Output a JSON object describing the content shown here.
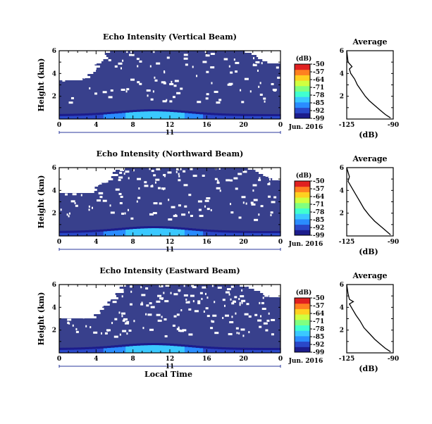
{
  "chart_data": [
    {
      "type": "heatmap",
      "title": "Echo Intensity (Vertical Beam)",
      "ylabel": "Height (km)",
      "ylim": [
        0,
        6
      ],
      "yticks": [
        "2",
        "4",
        "6"
      ],
      "xticks": [
        "0",
        "4",
        "8",
        "12",
        "16",
        "20",
        "0"
      ],
      "xlim": [
        0,
        24
      ],
      "day_label": "11",
      "date_label": "Jun. 2016",
      "colorbar": {
        "unit": "(dB)",
        "ticks": [
          "-50",
          "-57",
          "-64",
          "-71",
          "-78",
          "-85",
          "-92",
          "-99"
        ],
        "range": [
          -99,
          -50
        ]
      },
      "profile": {
        "title": "Average",
        "xlabel": "(dB)",
        "xticks": [
          "-125",
          "-90"
        ],
        "yticks": [
          "2",
          "4",
          "6"
        ],
        "xlim": [
          -125,
          -90
        ],
        "points": [
          [
            -92,
            0.1
          ],
          [
            -96,
            0.4
          ],
          [
            -100,
            0.8
          ],
          [
            -104,
            1.2
          ],
          [
            -108,
            1.6
          ],
          [
            -111,
            2.0
          ],
          [
            -114,
            2.5
          ],
          [
            -117,
            3.0
          ],
          [
            -119,
            3.5
          ],
          [
            -122,
            4.0
          ],
          [
            -123,
            4.4
          ],
          [
            -121,
            4.6
          ],
          [
            -124,
            5.0
          ],
          [
            -125,
            6.0
          ]
        ]
      }
    },
    {
      "type": "heatmap",
      "title": "Echo Intensity (Northward Beam)",
      "ylabel": "Height (km)",
      "ylim": [
        0,
        6
      ],
      "yticks": [
        "2",
        "4",
        "6"
      ],
      "xticks": [
        "0",
        "4",
        "8",
        "12",
        "16",
        "20",
        "0"
      ],
      "xlim": [
        0,
        24
      ],
      "day_label": "11",
      "date_label": "Jun. 2016",
      "colorbar": {
        "unit": "(dB)",
        "ticks": [
          "-50",
          "-57",
          "-64",
          "-71",
          "-78",
          "-85",
          "-92",
          "-99"
        ],
        "range": [
          -99,
          -50
        ]
      },
      "profile": {
        "title": "Average",
        "xlabel": "(dB)",
        "xticks": [
          "-125",
          "-90"
        ],
        "yticks": [
          "2",
          "4",
          "6"
        ],
        "xlim": [
          -125,
          -90
        ],
        "points": [
          [
            -92,
            0.1
          ],
          [
            -96,
            0.5
          ],
          [
            -100,
            0.9
          ],
          [
            -104,
            1.3
          ],
          [
            -108,
            1.8
          ],
          [
            -112,
            2.4
          ],
          [
            -115,
            3.0
          ],
          [
            -118,
            3.6
          ],
          [
            -121,
            4.2
          ],
          [
            -124,
            4.8
          ],
          [
            -123,
            5.2
          ],
          [
            -125,
            6.0
          ]
        ]
      }
    },
    {
      "type": "heatmap",
      "title": "Echo Intensity (Eastward Beam)",
      "ylabel": "Height (km)",
      "ylim": [
        0,
        6
      ],
      "yticks": [
        "2",
        "4",
        "6"
      ],
      "xticks": [
        "0",
        "4",
        "8",
        "12",
        "16",
        "20",
        "0"
      ],
      "xlim": [
        0,
        24
      ],
      "day_label": "11",
      "date_label": "Jun. 2016",
      "xlabel": "Local Time",
      "colorbar": {
        "unit": "(dB)",
        "ticks": [
          "-50",
          "-57",
          "-64",
          "-71",
          "-78",
          "-85",
          "-92",
          "-99"
        ],
        "range": [
          -99,
          -50
        ]
      },
      "profile": {
        "title": "Average",
        "xlabel": "(dB)",
        "xticks": [
          "-125",
          "-90"
        ],
        "yticks": [
          "2",
          "4",
          "6"
        ],
        "xlim": [
          -125,
          -90
        ],
        "points": [
          [
            -92,
            0.1
          ],
          [
            -96,
            0.4
          ],
          [
            -100,
            0.8
          ],
          [
            -104,
            1.2
          ],
          [
            -108,
            1.7
          ],
          [
            -112,
            2.2
          ],
          [
            -115,
            2.8
          ],
          [
            -118,
            3.3
          ],
          [
            -121,
            3.9
          ],
          [
            -123,
            4.3
          ],
          [
            -120,
            4.5
          ],
          [
            -123,
            4.7
          ],
          [
            -124,
            5.2
          ],
          [
            -125,
            6.0
          ]
        ]
      }
    }
  ],
  "colors": {
    "background_field": "#38408c",
    "gap": "#ffffff",
    "colormap": [
      "#1c1c8c",
      "#2a48c8",
      "#2a8cff",
      "#3ac8ff",
      "#40ffd0",
      "#80ff80",
      "#d0ff40",
      "#ffd020",
      "#ff8020",
      "#e02020"
    ]
  }
}
